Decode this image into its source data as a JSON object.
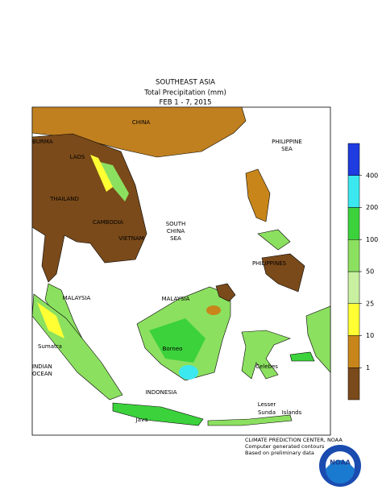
{
  "title": [
    "SOUTHEAST ASIA",
    "Total Precipitation (mm)",
    "FEB 1 - 7, 2015"
  ],
  "legend": {
    "colors": [
      "#7a4a1a",
      "#c8861a",
      "#ffff33",
      "#c8f0a0",
      "#8ce060",
      "#3cd23c",
      "#3ce8f0",
      "#1e3ce0"
    ],
    "ticks": [
      1,
      10,
      25,
      50,
      100,
      200,
      400
    ]
  },
  "labels": {
    "china": "CHINA",
    "burma": "BURMA",
    "laos": "LAOS",
    "thailand": "THAILAND",
    "cambodia": "CAMBODIA",
    "vietnam": "VIETNAM",
    "philippine_sea": [
      "PHILIPPINE",
      "SEA"
    ],
    "south_china_sea": [
      "SOUTH",
      "CHINA",
      "SEA"
    ],
    "philippines": "PHILIPPINES",
    "malaysia_west": "MALAYSIA",
    "malaysia_east": "MALAYSIA",
    "sumatra": "Sumatra",
    "indian_ocean": [
      "INDIAN",
      "OCEAN"
    ],
    "borneo": "Borneo",
    "celebes": "Celebes",
    "indonesia": "INDONESIA",
    "lesser_sunda": [
      "Lesser",
      "Sunda",
      "Islands"
    ],
    "java": "Java"
  },
  "footer": [
    "CLIMATE PREDICTION CENTER, NOAA",
    "Computer generated contours",
    "Based on preliminary data"
  ],
  "logo": "NOAA"
}
